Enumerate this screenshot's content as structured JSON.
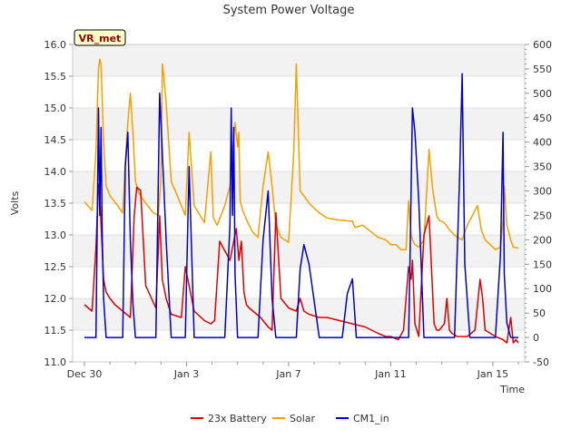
{
  "chart_data": {
    "type": "line",
    "title": "System Power Voltage",
    "badge": "VR_met",
    "xlabel": "Time",
    "ylabel": "Volts",
    "xlim_days": [
      0,
      17
    ],
    "x_ticks": [
      {
        "day": 0,
        "label": "Dec 30"
      },
      {
        "day": 4,
        "label": "Jan 3"
      },
      {
        "day": 8,
        "label": "Jan 7"
      },
      {
        "day": 12,
        "label": "Jan 11"
      },
      {
        "day": 16,
        "label": "Jan 15"
      }
    ],
    "y_left": {
      "min": 11.0,
      "max": 16.0,
      "ticks": [
        "11.0",
        "11.5",
        "12.0",
        "12.5",
        "13.0",
        "13.5",
        "14.0",
        "14.5",
        "15.0",
        "15.5",
        "16.0"
      ]
    },
    "y_right": {
      "min": -50,
      "max": 600,
      "ticks": [
        "-50",
        "0",
        "50",
        "100",
        "150",
        "200",
        "250",
        "300",
        "350",
        "400",
        "450",
        "500",
        "550",
        "600"
      ]
    },
    "series": [
      {
        "name": "23x Battery",
        "axis": "left",
        "color": "#dd0000",
        "x": [
          0.0,
          0.3,
          0.45,
          0.55,
          0.6,
          0.75,
          0.85,
          1.0,
          1.2,
          1.5,
          1.8,
          1.95,
          2.05,
          2.2,
          2.4,
          2.8,
          2.95,
          3.05,
          3.2,
          3.4,
          3.8,
          3.95,
          4.1,
          4.3,
          4.7,
          4.95,
          5.1,
          5.3,
          5.7,
          5.95,
          6.05,
          6.15,
          6.25,
          6.35,
          6.45,
          6.6,
          6.9,
          7.2,
          7.35,
          7.5,
          7.7,
          8.0,
          8.3,
          8.45,
          8.6,
          8.8,
          9.2,
          9.5,
          10.0,
          10.5,
          11.0,
          11.5,
          11.8,
          12.0,
          12.3,
          12.5,
          12.7,
          12.8,
          12.85,
          12.95,
          13.1,
          13.3,
          13.5,
          13.7,
          13.8,
          13.9,
          14.1,
          14.2,
          14.3,
          14.4,
          14.6,
          15.0,
          15.3,
          15.5,
          15.6,
          15.7,
          15.9,
          16.1,
          16.4,
          16.55,
          16.7,
          16.8,
          16.9,
          17.0
        ],
        "values": [
          11.9,
          11.8,
          12.8,
          13.8,
          13.6,
          12.3,
          12.1,
          12.0,
          11.9,
          11.8,
          11.7,
          13.3,
          13.75,
          13.7,
          12.2,
          11.85,
          13.3,
          12.3,
          12.0,
          11.75,
          11.7,
          12.5,
          12.2,
          11.8,
          11.65,
          11.6,
          11.65,
          12.9,
          12.6,
          13.1,
          12.6,
          12.9,
          12.1,
          11.9,
          11.85,
          11.8,
          11.7,
          11.55,
          11.5,
          13.35,
          12.0,
          11.85,
          11.8,
          12.0,
          11.8,
          11.75,
          11.7,
          11.7,
          11.65,
          11.6,
          11.55,
          11.45,
          11.4,
          11.4,
          11.35,
          11.5,
          12.5,
          12.3,
          12.6,
          11.6,
          11.4,
          13.0,
          13.3,
          11.6,
          11.5,
          11.5,
          11.6,
          12.0,
          11.5,
          11.45,
          11.4,
          11.4,
          11.5,
          12.3,
          12.0,
          11.5,
          11.45,
          11.4,
          11.35,
          11.3,
          11.7,
          11.3,
          11.35,
          11.3
        ]
      },
      {
        "name": "Solar",
        "axis": "right",
        "color": "#f5a000",
        "x": [
          0.0,
          0.3,
          0.45,
          0.55,
          0.6,
          0.65,
          0.75,
          0.85,
          1.0,
          1.3,
          1.5,
          1.6,
          1.7,
          1.8,
          1.9,
          2.0,
          2.1,
          2.2,
          2.4,
          2.7,
          2.9,
          3.0,
          3.05,
          3.1,
          3.2,
          3.4,
          3.8,
          3.95,
          4.1,
          4.3,
          4.7,
          4.95,
          5.05,
          5.2,
          5.5,
          5.7,
          5.8,
          5.9,
          6.0,
          6.05,
          6.1,
          6.2,
          6.4,
          6.6,
          6.8,
          7.0,
          7.2,
          7.35,
          7.5,
          7.7,
          8.0,
          8.2,
          8.3,
          8.45,
          8.6,
          8.8,
          9.2,
          9.5,
          10.0,
          10.5,
          10.6,
          10.9,
          11.5,
          11.8,
          12.0,
          12.2,
          12.4,
          12.6,
          12.7,
          12.8,
          12.85,
          12.95,
          13.1,
          13.3,
          13.5,
          13.65,
          13.8,
          13.9,
          14.1,
          14.3,
          14.6,
          14.8,
          15.0,
          15.2,
          15.4,
          15.55,
          15.7,
          15.9,
          16.1,
          16.3,
          16.4,
          16.45,
          16.55,
          16.7,
          16.8,
          17.0
        ],
        "values": [
          278,
          260,
          380,
          550,
          570,
          560,
          400,
          310,
          290,
          270,
          255,
          360,
          440,
          500,
          420,
          320,
          300,
          290,
          275,
          255,
          250,
          330,
          560,
          540,
          480,
          320,
          270,
          250,
          420,
          270,
          235,
          380,
          245,
          230,
          270,
          310,
          380,
          440,
          390,
          420,
          280,
          260,
          235,
          215,
          205,
          310,
          380,
          310,
          230,
          205,
          195,
          380,
          560,
          300,
          290,
          275,
          255,
          245,
          240,
          238,
          225,
          230,
          205,
          200,
          190,
          190,
          180,
          180,
          280,
          210,
          200,
          190,
          185,
          200,
          385,
          300,
          250,
          240,
          235,
          220,
          205,
          200,
          230,
          250,
          270,
          220,
          200,
          190,
          180,
          185,
          240,
          310,
          230,
          200,
          185,
          183
        ]
      },
      {
        "name": "CM1_in",
        "axis": "right",
        "color": "#0000cc",
        "x": [
          0.0,
          0.3,
          0.45,
          0.55,
          0.6,
          0.65,
          0.7,
          0.75,
          0.85,
          1.0,
          1.3,
          1.5,
          1.6,
          1.7,
          1.8,
          1.9,
          2.0,
          2.1,
          2.2,
          2.4,
          2.7,
          2.8,
          2.95,
          3.05,
          3.2,
          3.4,
          3.8,
          3.95,
          4.1,
          4.3,
          4.7,
          4.95,
          5.05,
          5.2,
          5.5,
          5.7,
          5.75,
          5.8,
          5.85,
          5.9,
          6.0,
          6.1,
          6.2,
          6.4,
          6.6,
          6.8,
          7.0,
          7.2,
          7.35,
          7.5,
          7.7,
          8.0,
          8.2,
          8.3,
          8.45,
          8.6,
          8.8,
          9.2,
          9.5,
          9.75,
          9.9,
          10.1,
          10.3,
          10.5,
          10.65,
          10.8,
          11.0,
          11.3,
          11.5,
          11.8,
          12.0,
          12.3,
          12.5,
          12.7,
          12.75,
          12.85,
          12.95,
          13.1,
          13.3,
          13.5,
          13.65,
          13.75,
          13.9,
          14.3,
          14.5,
          14.7,
          14.8,
          14.9,
          15.1,
          15.3,
          15.5,
          15.55,
          15.7,
          15.9,
          16.1,
          16.3,
          16.4,
          16.45,
          16.55,
          16.7,
          16.8,
          17.0
        ],
        "values": [
          0,
          0,
          0,
          470,
          250,
          430,
          200,
          80,
          0,
          0,
          0,
          0,
          350,
          420,
          200,
          70,
          0,
          0,
          0,
          0,
          0,
          0,
          500,
          380,
          200,
          0,
          0,
          0,
          350,
          0,
          0,
          0,
          0,
          0,
          0,
          230,
          470,
          250,
          430,
          130,
          0,
          0,
          0,
          0,
          0,
          0,
          200,
          300,
          80,
          0,
          0,
          0,
          0,
          0,
          140,
          190,
          150,
          0,
          0,
          0,
          0,
          0,
          90,
          120,
          0,
          0,
          0,
          0,
          0,
          0,
          0,
          0,
          0,
          0,
          140,
          470,
          420,
          280,
          0,
          0,
          0,
          0,
          0,
          0,
          0,
          330,
          540,
          150,
          0,
          0,
          0,
          0,
          0,
          0,
          0,
          170,
          420,
          130,
          30,
          0,
          0,
          0
        ]
      }
    ]
  }
}
